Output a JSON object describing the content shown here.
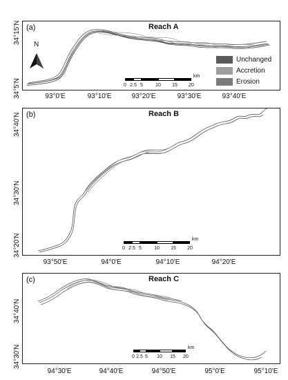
{
  "panels": [
    {
      "id": "a",
      "label": "(a)",
      "title": "Reach A",
      "lat_labels": [
        "34°15'N",
        "34°5'N"
      ],
      "lon_labels": [
        "93°0'E",
        "93°10'E",
        "93°20'E",
        "93°30'E",
        "93°40'E"
      ],
      "scale_ticks": [
        "0",
        "2.5",
        "5",
        "10",
        "15",
        "20"
      ],
      "scale_unit": "km"
    },
    {
      "id": "b",
      "label": "(b)",
      "title": "Reach B",
      "lat_labels": [
        "34°40'N",
        "34°30'N",
        "34°20'N"
      ],
      "lon_labels": [
        "93°50'E",
        "94°0'E",
        "94°10'E",
        "94°20'E"
      ],
      "scale_ticks": [
        "0",
        "2.5",
        "5",
        "10",
        "15",
        "20"
      ],
      "scale_unit": "km"
    },
    {
      "id": "c",
      "label": "(c)",
      "title": "Reach C",
      "lat_labels": [
        "34°40'N",
        "34°30'N"
      ],
      "lon_labels": [
        "94°30'E",
        "94°40'E",
        "94°50'E",
        "95°0'E",
        "95°10'E"
      ],
      "scale_ticks": [
        "0",
        "2.5",
        "5",
        "10",
        "15",
        "20"
      ],
      "scale_unit": "km"
    }
  ],
  "north_arrow_label": "N",
  "legend": [
    {
      "label": "Unchanged",
      "color": "#5a5a5a"
    },
    {
      "label": "Accretion",
      "color": "#9e9e9e"
    },
    {
      "label": "Erosion",
      "color": "#7b7b7b"
    }
  ]
}
